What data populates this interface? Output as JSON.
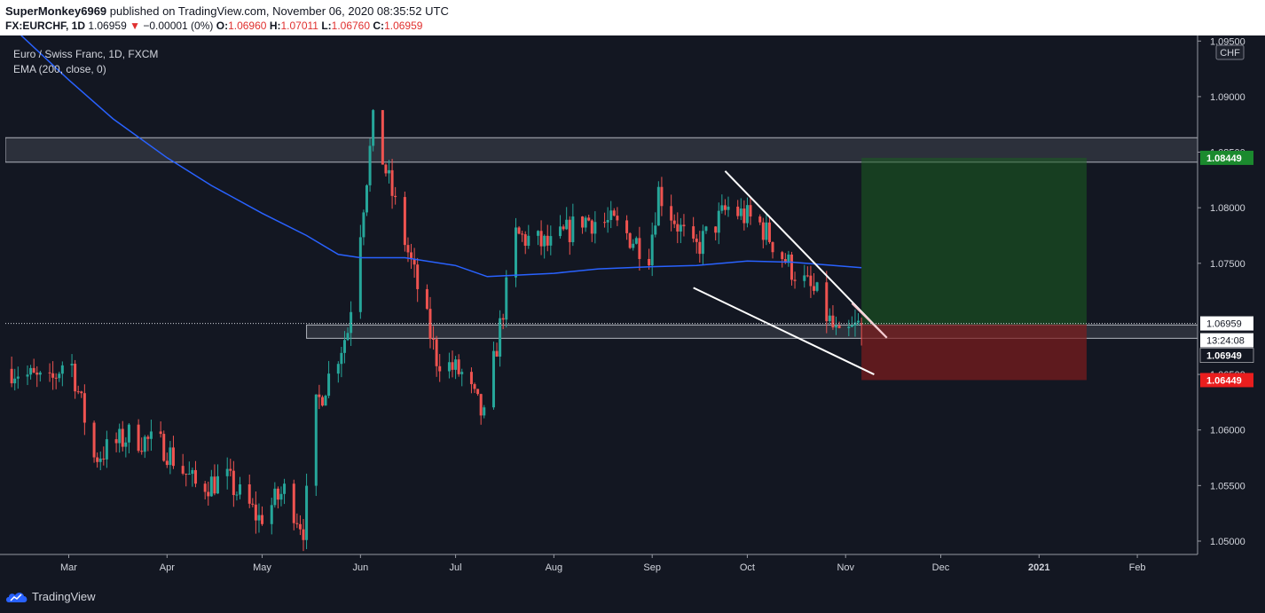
{
  "header": {
    "author": "SuperMonkey6969",
    "published_text": "published on TradingView.com, November 06, 2020 08:35:52 UTC",
    "symbol": "FX:EURCHF, 1D",
    "last": "1.06959",
    "change": "−0.00001 (0%)",
    "o_label": "O:",
    "o_value": "1.06960",
    "h_label": "H:",
    "h_value": "1.07011",
    "l_label": "L:",
    "l_value": "1.06760",
    "c_label": "C:",
    "c_value": "1.06959"
  },
  "legend": {
    "instrument": "Euro / Swiss Franc, 1D, FXCM",
    "indicator": "EMA (200, close, 0)"
  },
  "currency_badge": "CHF",
  "footer": {
    "brand": "TradingView"
  },
  "colors": {
    "background": "#131722",
    "up": "#26a69a",
    "down": "#ef5350",
    "ema": "#2962ff",
    "target_zone": "#1b5e20",
    "stop_zone": "#7f1d1d"
  },
  "chart_data": {
    "type": "candlestick",
    "ylim": [
      1.0488,
      1.0955
    ],
    "y_ticks": [
      "1.05000",
      "1.05500",
      "1.06000",
      "1.07500",
      "1.08000",
      "1.09000",
      "1.09500"
    ],
    "y_ticks_partially_hidden": [
      "1.08500",
      "1.06500"
    ],
    "x_ticks": [
      "Mar",
      "Apr",
      "May",
      "Jun",
      "Jul",
      "Aug",
      "Sep",
      "Oct",
      "Nov",
      "Dec",
      "2021",
      "Feb"
    ],
    "x_tick_positions": [
      "2020-03-01",
      "2020-04-01",
      "2020-05-01",
      "2020-06-01",
      "2020-07-01",
      "2020-08-01",
      "2020-09-01",
      "2020-10-01",
      "2020-11-01",
      "2020-12-01",
      "2021-01-01",
      "2021-02-01"
    ],
    "x_range": [
      "2020-02-10",
      "2021-02-20"
    ],
    "price_labels": [
      {
        "text": "1.08449",
        "value": 1.08449,
        "kind": "target"
      },
      {
        "text": "1.06959",
        "value": 1.06959,
        "kind": "last"
      },
      {
        "text": "13:24:08",
        "value": 1.06959,
        "kind": "countdown"
      },
      {
        "text": "1.06949",
        "value": 1.06949,
        "kind": "entry"
      },
      {
        "text": "1.06449",
        "value": 1.06449,
        "kind": "stop"
      }
    ],
    "last_price_line": 1.06959,
    "zones": [
      {
        "name": "resistance",
        "from": "2020-02-10",
        "to": "2021-02-20",
        "low": 1.0841,
        "high": 1.0863
      },
      {
        "name": "support",
        "from": "2020-05-15",
        "to": "2021-02-20",
        "low": 1.06825,
        "high": 1.06945
      }
    ],
    "position": {
      "from": "2020-11-06",
      "to": "2021-01-16",
      "entry": 1.06949,
      "target": 1.08449,
      "stop": 1.06449
    },
    "trendlines": [
      {
        "points": [
          [
            "2020-09-24",
            1.0833
          ],
          [
            "2020-11-14",
            1.0683
          ]
        ]
      },
      {
        "points": [
          [
            "2020-09-14",
            1.0728
          ],
          [
            "2020-11-10",
            1.065
          ]
        ]
      }
    ],
    "ema": [
      [
        "2020-02-15",
        1.0955
      ],
      [
        "2020-03-01",
        1.0915
      ],
      [
        "2020-03-15",
        1.088
      ],
      [
        "2020-04-01",
        1.0845
      ],
      [
        "2020-04-15",
        1.082
      ],
      [
        "2020-05-01",
        1.0795
      ],
      [
        "2020-05-15",
        1.0775
      ],
      [
        "2020-05-25",
        1.0758
      ],
      [
        "2020-06-01",
        1.0755
      ],
      [
        "2020-06-15",
        1.0755
      ],
      [
        "2020-07-01",
        1.0748
      ],
      [
        "2020-07-11",
        1.0738
      ],
      [
        "2020-08-01",
        1.0741
      ],
      [
        "2020-08-15",
        1.0745
      ],
      [
        "2020-09-01",
        1.0747
      ],
      [
        "2020-09-15",
        1.0748
      ],
      [
        "2020-10-01",
        1.0752
      ],
      [
        "2020-10-15",
        1.0751
      ],
      [
        "2020-11-06",
        1.0746
      ]
    ],
    "close_path": [
      [
        "2020-02-12",
        1.0655
      ],
      [
        "2020-02-24",
        1.064
      ],
      [
        "2020-03-01",
        1.067
      ],
      [
        "2020-03-09",
        1.0575
      ],
      [
        "2020-03-20",
        1.0595
      ],
      [
        "2020-03-31",
        1.0585
      ],
      [
        "2020-04-10",
        1.055
      ],
      [
        "2020-04-20",
        1.0555
      ],
      [
        "2020-04-30",
        1.052
      ],
      [
        "2020-05-08",
        1.0545
      ],
      [
        "2020-05-14",
        1.0512
      ],
      [
        "2020-05-18",
        1.062
      ],
      [
        "2020-05-28",
        1.069
      ],
      [
        "2020-06-05",
        1.0875
      ],
      [
        "2020-06-16",
        1.076
      ],
      [
        "2020-06-25",
        1.0665
      ],
      [
        "2020-07-03",
        1.065
      ],
      [
        "2020-07-10",
        1.061
      ],
      [
        "2020-07-20",
        1.0775
      ],
      [
        "2020-07-31",
        1.0765
      ],
      [
        "2020-08-10",
        1.079
      ],
      [
        "2020-08-20",
        1.0785
      ],
      [
        "2020-08-31",
        1.076
      ],
      [
        "2020-09-03",
        1.0815
      ],
      [
        "2020-09-14",
        1.076
      ],
      [
        "2020-09-25",
        1.08
      ],
      [
        "2020-10-05",
        1.0785
      ],
      [
        "2020-10-15",
        1.0745
      ],
      [
        "2020-10-23",
        1.072
      ],
      [
        "2020-10-30",
        1.068
      ],
      [
        "2020-11-06",
        1.06959
      ]
    ]
  }
}
